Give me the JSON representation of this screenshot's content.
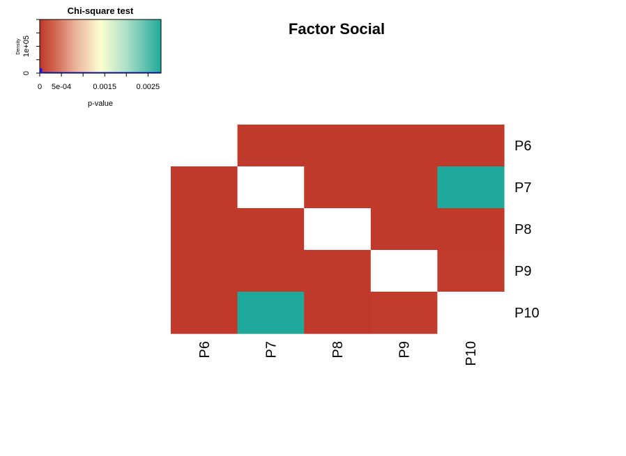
{
  "chart_data": {
    "type": "heatmap",
    "title": "Factor Social",
    "rows": [
      "P6",
      "P7",
      "P8",
      "P9",
      "P10"
    ],
    "columns": [
      "P6",
      "P7",
      "P8",
      "P9",
      "P10"
    ],
    "values": [
      [
        null,
        1e-06,
        1e-06,
        1e-06,
        1e-06
      ],
      [
        1e-06,
        null,
        1e-06,
        1e-06,
        0.0028
      ],
      [
        1e-06,
        1e-06,
        null,
        1e-06,
        1e-06
      ],
      [
        1e-06,
        1e-06,
        1e-06,
        null,
        2e-05
      ],
      [
        1e-06,
        0.0028,
        1e-06,
        2e-05,
        null
      ]
    ],
    "color_key": {
      "title": "Chi-square test",
      "xlabel": "p-value",
      "ylabel": "Density",
      "x_ticks": [
        {
          "value": 0,
          "label": "0"
        },
        {
          "value": 0.0005,
          "label": "5e-04"
        },
        {
          "value": 0.001,
          "label": ""
        },
        {
          "value": 0.0015,
          "label": "0.0015"
        },
        {
          "value": 0.002,
          "label": ""
        },
        {
          "value": 0.0025,
          "label": "0.0025"
        }
      ],
      "y_ticks": [
        {
          "value": 0,
          "label": "0"
        },
        {
          "value": 100000,
          "label": "1e+05"
        }
      ],
      "xlim": [
        0,
        0.0028
      ],
      "ylim": [
        0,
        200000
      ],
      "color_stops": [
        "#c0392b",
        "#fdfdd0",
        "#1fa99a"
      ]
    }
  }
}
